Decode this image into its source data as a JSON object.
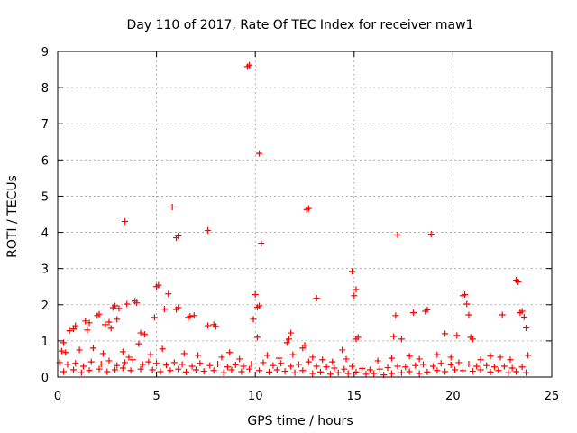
{
  "chart_data": {
    "type": "scatter",
    "title": "Day 110 of 2017, Rate Of TEC Index for receiver maw1",
    "xlabel": "GPS time / hours",
    "ylabel": "ROTI / TECUs",
    "xlim": [
      0,
      25
    ],
    "ylim": [
      0,
      9
    ],
    "xticks": [
      0,
      5,
      10,
      15,
      20,
      25
    ],
    "yticks": [
      0,
      1,
      2,
      3,
      4,
      5,
      6,
      7,
      8,
      9
    ],
    "grid": true,
    "marker": "plus",
    "series": [
      {
        "name": "ROTI",
        "color": "#ff0000",
        "x": [
          9.6,
          9.7,
          10.2,
          12.6,
          12.7,
          3.4,
          5.8,
          6.0,
          6.1,
          7.6,
          10.3,
          17.2,
          18.9,
          14.9,
          15.1,
          13.1,
          10.0,
          10.1,
          10.2,
          15.0,
          23.2,
          23.3,
          5.0,
          5.1,
          5.6,
          3.5,
          2.9,
          3.9,
          4.0,
          0.3,
          0.6,
          0.8,
          0.9,
          1.4,
          1.5,
          1.6,
          2.0,
          2.1,
          2.4,
          2.6,
          2.7,
          2.8,
          3.0,
          3.1,
          4.2,
          4.4,
          4.9,
          5.4,
          6.0,
          6.1,
          6.6,
          6.7,
          6.9,
          7.6,
          7.9,
          8.0,
          9.9,
          10.1,
          11.6,
          11.7,
          11.8,
          12.4,
          12.5,
          14.4,
          15.1,
          15.2,
          17.0,
          17.1,
          17.4,
          18.0,
          18.6,
          18.7,
          19.6,
          20.2,
          20.5,
          20.6,
          20.7,
          20.8,
          20.9,
          21.0,
          22.5,
          23.4,
          23.5,
          23.6,
          23.7,
          0.2,
          0.4,
          1.1,
          1.8,
          2.3,
          3.3,
          3.6,
          4.1,
          4.7,
          5.3,
          6.4,
          7.1,
          8.3,
          8.7,
          9.2,
          10.6,
          11.2,
          11.9,
          12.9,
          13.4,
          13.9,
          14.6,
          16.2,
          16.9,
          17.8,
          18.3,
          19.2,
          19.9,
          21.4,
          21.9,
          22.4,
          22.9,
          23.8,
          0.1,
          0.5,
          0.9,
          1.3,
          1.7,
          2.2,
          2.6,
          3.0,
          3.4,
          3.8,
          4.3,
          4.6,
          5.0,
          5.5,
          5.9,
          6.3,
          6.8,
          7.2,
          7.7,
          8.1,
          8.6,
          9.0,
          9.4,
          9.8,
          10.4,
          10.9,
          11.3,
          11.8,
          12.2,
          12.7,
          13.1,
          13.6,
          14.0,
          14.5,
          14.9,
          15.4,
          15.8,
          16.3,
          16.7,
          17.2,
          17.6,
          18.1,
          18.5,
          19.0,
          19.4,
          19.9,
          20.3,
          20.8,
          21.2,
          21.7,
          22.1,
          22.6,
          23.0,
          23.5,
          0.3,
          0.8,
          1.2,
          1.6,
          2.1,
          2.5,
          2.9,
          3.3,
          3.7,
          4.2,
          4.8,
          5.2,
          5.7,
          6.1,
          6.5,
          7.0,
          7.4,
          7.9,
          8.4,
          8.8,
          9.3,
          9.7,
          10.2,
          10.7,
          11.1,
          11.5,
          12.0,
          12.4,
          12.9,
          13.3,
          13.8,
          14.2,
          14.7,
          15.1,
          15.6,
          16.0,
          16.5,
          16.9,
          17.4,
          17.8,
          18.3,
          18.7,
          19.2,
          19.6,
          20.1,
          20.5,
          21.0,
          21.4,
          21.9,
          22.3,
          22.8,
          23.2,
          23.7
        ],
        "y": [
          8.58,
          8.62,
          6.18,
          4.63,
          4.66,
          4.3,
          4.7,
          3.85,
          3.9,
          4.05,
          3.7,
          3.93,
          3.95,
          2.92,
          2.42,
          2.18,
          2.28,
          1.93,
          1.97,
          2.25,
          2.68,
          2.63,
          2.5,
          2.54,
          2.3,
          2.02,
          1.97,
          2.1,
          2.05,
          0.95,
          1.28,
          1.33,
          1.42,
          1.55,
          1.3,
          1.5,
          1.7,
          1.74,
          1.45,
          1.52,
          1.35,
          1.92,
          1.6,
          1.9,
          1.22,
          1.18,
          1.65,
          1.88,
          1.87,
          1.92,
          1.65,
          1.68,
          1.7,
          1.42,
          1.45,
          1.4,
          1.6,
          1.1,
          0.95,
          1.05,
          1.22,
          0.8,
          0.88,
          0.75,
          1.05,
          1.1,
          1.12,
          1.7,
          1.05,
          1.78,
          1.82,
          1.86,
          1.2,
          1.15,
          2.25,
          2.28,
          2.02,
          1.72,
          1.1,
          1.05,
          1.72,
          1.78,
          1.82,
          1.66,
          1.36,
          0.72,
          0.68,
          0.75,
          0.8,
          0.65,
          0.7,
          0.55,
          0.92,
          0.62,
          0.78,
          0.65,
          0.6,
          0.55,
          0.68,
          0.5,
          0.6,
          0.52,
          0.62,
          0.55,
          0.48,
          0.42,
          0.5,
          0.45,
          0.52,
          0.58,
          0.5,
          0.62,
          0.55,
          0.48,
          0.58,
          0.55,
          0.48,
          0.6,
          0.4,
          0.35,
          0.38,
          0.3,
          0.42,
          0.36,
          0.45,
          0.32,
          0.4,
          0.48,
          0.35,
          0.42,
          0.38,
          0.33,
          0.4,
          0.35,
          0.3,
          0.38,
          0.32,
          0.36,
          0.28,
          0.34,
          0.3,
          0.36,
          0.4,
          0.32,
          0.38,
          0.3,
          0.35,
          0.42,
          0.3,
          0.28,
          0.25,
          0.22,
          0.3,
          0.24,
          0.2,
          0.22,
          0.26,
          0.3,
          0.28,
          0.32,
          0.35,
          0.3,
          0.38,
          0.34,
          0.4,
          0.36,
          0.3,
          0.32,
          0.28,
          0.3,
          0.25,
          0.28,
          0.15,
          0.2,
          0.12,
          0.18,
          0.22,
          0.15,
          0.2,
          0.25,
          0.18,
          0.22,
          0.2,
          0.15,
          0.18,
          0.22,
          0.14,
          0.2,
          0.16,
          0.18,
          0.12,
          0.2,
          0.15,
          0.22,
          0.18,
          0.14,
          0.2,
          0.16,
          0.12,
          0.18,
          0.1,
          0.14,
          0.08,
          0.12,
          0.1,
          0.14,
          0.08,
          0.1,
          0.06,
          0.1,
          0.12,
          0.15,
          0.1,
          0.14,
          0.18,
          0.15,
          0.2,
          0.18,
          0.16,
          0.2,
          0.14,
          0.18,
          0.12,
          0.15,
          0.12
        ]
      }
    ]
  }
}
